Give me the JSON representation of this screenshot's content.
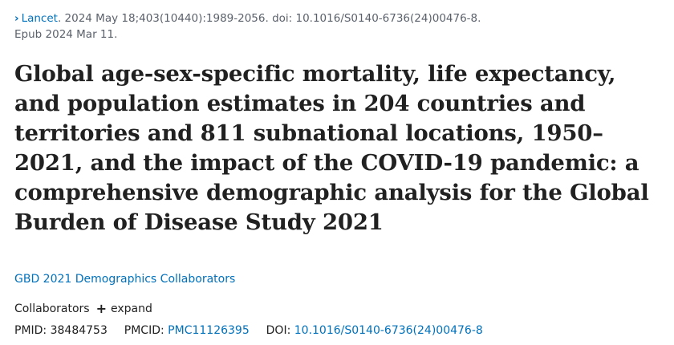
{
  "citation": {
    "journal": "Lancet",
    "details": ". 2024 May 18;403(10440):1989-2056. doi: 10.1016/S0140-6736(24)00476-8.",
    "epub": "Epub 2024 Mar 11."
  },
  "title": "Global age-sex-specific mortality, life expectancy, and population estimates in 204 countries and territories and 811 subnational locations, 1950–2021, and the impact of the COVID-19 pandemic: a comprehensive demographic analysis for the Global Burden of Disease Study 2021",
  "authors": "GBD 2021 Demographics Collaborators",
  "collaborators": {
    "label": "Collaborators",
    "expand_label": "expand"
  },
  "identifiers": {
    "pmid_label": "PMID:",
    "pmid": "38484753",
    "pmcid_label": "PMCID:",
    "pmcid": "PMC11126395",
    "doi_label": "DOI:",
    "doi": "10.1016/S0140-6736(24)00476-8"
  },
  "icons": {
    "journal": "chevron-right-icon",
    "expand": "plus-icon"
  },
  "colors": {
    "link": "#0071bc",
    "text": "#212121",
    "muted": "#5b616b"
  }
}
